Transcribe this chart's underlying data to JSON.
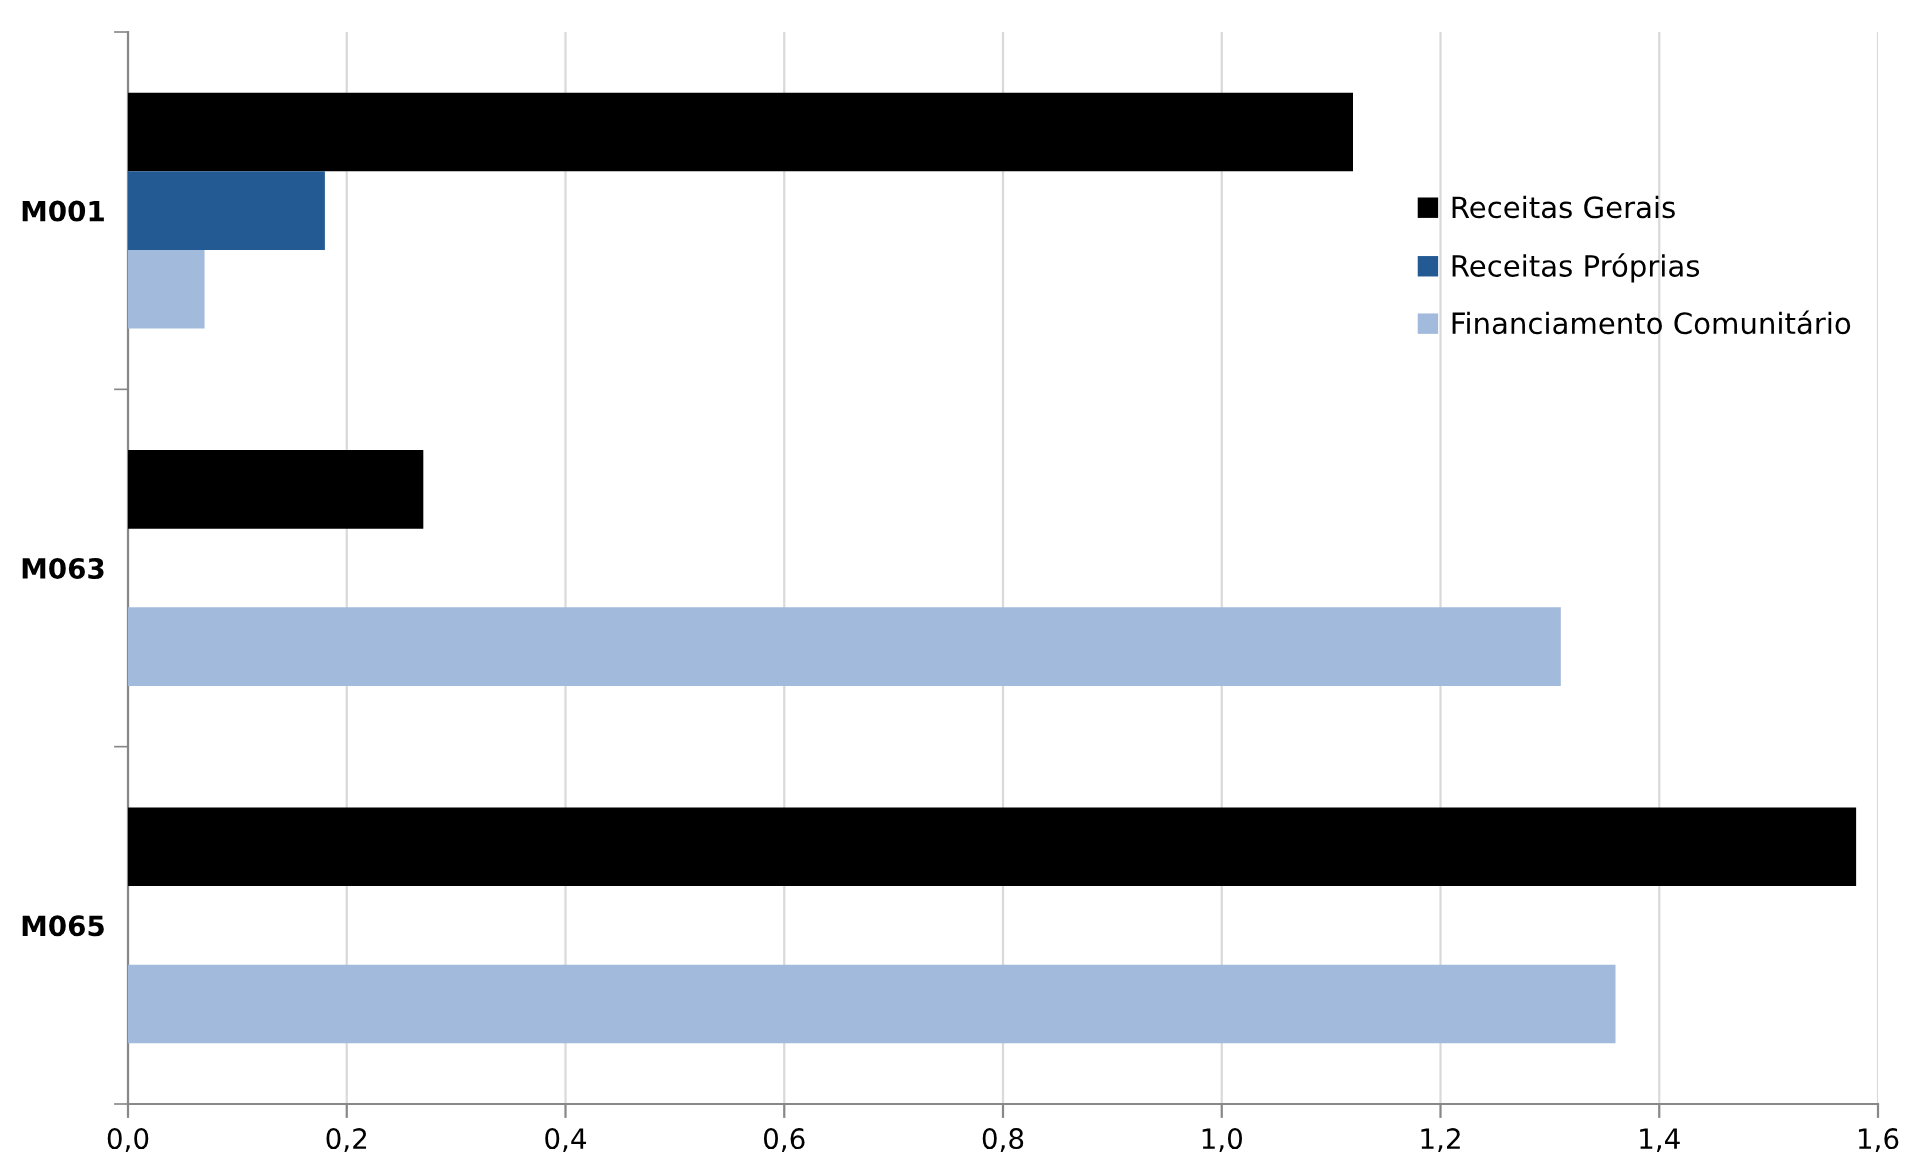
{
  "chart_data": {
    "type": "bar",
    "orientation": "horizontal",
    "categories": [
      "M001",
      "M063",
      "M065"
    ],
    "series": [
      {
        "name": "Receitas Gerais",
        "color": "#000000",
        "values": [
          1.12,
          0.27,
          1.58
        ]
      },
      {
        "name": "Receitas Próprias",
        "color": "#235a93",
        "values": [
          0.18,
          null,
          null
        ]
      },
      {
        "name": "Financiamento Comunitário",
        "color": "#a2bbdc",
        "values": [
          0.07,
          1.31,
          1.36
        ]
      }
    ],
    "xlim": [
      0,
      1.6
    ],
    "xticks": [
      {
        "value": 0,
        "label": "0,0"
      },
      {
        "value": 0.2,
        "label": "0,2"
      },
      {
        "value": 0.4,
        "label": "0,4"
      },
      {
        "value": 0.6,
        "label": "0,6"
      },
      {
        "value": 0.8,
        "label": "0,8"
      },
      {
        "value": 1.0,
        "label": "1,0"
      },
      {
        "value": 1.2,
        "label": "1,2"
      },
      {
        "value": 1.4,
        "label": "1,4"
      },
      {
        "value": 1.6,
        "label": "1,6"
      }
    ],
    "grid": "x",
    "legend": "right"
  }
}
